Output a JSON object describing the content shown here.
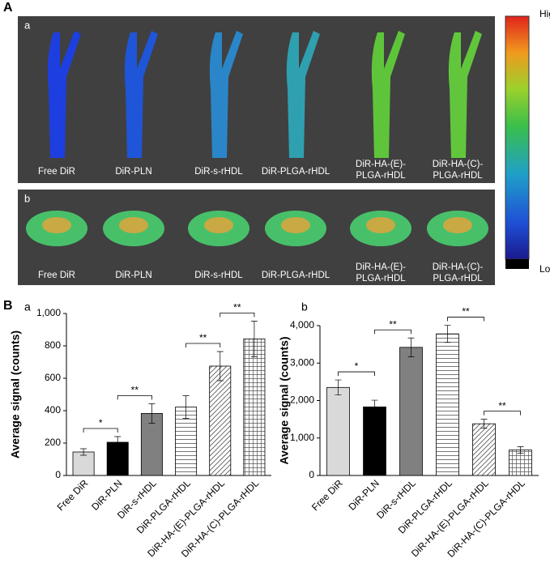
{
  "panel_a": {
    "label": "A",
    "images": [
      {
        "label": "a",
        "captions": [
          [
            "Free DiR"
          ],
          [
            "DiR-PLN"
          ],
          [
            "DiR-s-rHDL"
          ],
          [
            "DiR-PLGA-rHDL"
          ],
          [
            "DiR-HA-(E)-",
            "PLGA-rHDL"
          ],
          [
            "DiR-HA-(C)-",
            "PLGA-rHDL"
          ]
        ]
      },
      {
        "label": "b",
        "captions": [
          [
            "Free DiR"
          ],
          [
            "DiR-PLN"
          ],
          [
            "DiR-s-rHDL"
          ],
          [
            "DiR-PLGA-rHDL"
          ],
          [
            "DiR-HA-(E)-",
            "PLGA-rHDL"
          ],
          [
            "DiR-HA-(C)-",
            "PLGA-rHDL"
          ]
        ]
      }
    ],
    "colorbar": {
      "high": "High",
      "low": "Low"
    }
  },
  "panel_b": {
    "label": "B"
  },
  "chart_data": [
    {
      "type": "bar",
      "title": "a",
      "ylabel": "Average signal (counts)",
      "categories": [
        "Free DiR",
        "DiR-PLN",
        "DiR-s-rHDL",
        "DiR-PLGA-rHDL",
        "DiR-HA-(E)-PLGA-rHDL",
        "DiR-HA-(C)-PLGA-rHDL"
      ],
      "values": [
        145,
        205,
        383,
        422,
        675,
        843
      ],
      "errors": [
        20,
        35,
        60,
        70,
        90,
        110
      ],
      "colors": [
        "#d9d9d9",
        "#000000",
        "#808080",
        "#ffffff",
        "#ffffff",
        "#ffffff"
      ],
      "hatches": [
        "none",
        "none",
        "none",
        "horizontal",
        "diagonal",
        "grid"
      ],
      "ylim": [
        0,
        1000
      ],
      "yticks": [
        0,
        200,
        400,
        600,
        800,
        {
          "value": 1000,
          "label": "1,000"
        }
      ],
      "annotations": [
        {
          "label": "*",
          "from": "Free DiR",
          "to": "DiR-PLN"
        },
        {
          "label": "**",
          "from": "DiR-PLN",
          "to": "DiR-s-rHDL"
        },
        {
          "label": "**",
          "from": "DiR-PLGA-rHDL",
          "to": "DiR-HA-(E)-PLGA-rHDL"
        },
        {
          "label": "**",
          "from": "DiR-HA-(E)-PLGA-rHDL",
          "to": "DiR-HA-(C)-PLGA-rHDL"
        }
      ]
    },
    {
      "type": "bar",
      "title": "b",
      "ylabel": "Average signal (counts)",
      "categories": [
        "Free DiR",
        "DiR-PLN",
        "DiR-s-rHDL",
        "DiR-PLGA-rHDL",
        "DiR-HA-(E)-PLGA-rHDL",
        "DiR-HA-(C)-PLGA-rHDL"
      ],
      "values": [
        2350,
        1830,
        3420,
        3780,
        1380,
        680
      ],
      "errors": [
        200,
        180,
        250,
        230,
        120,
        90
      ],
      "colors": [
        "#d9d9d9",
        "#000000",
        "#808080",
        "#ffffff",
        "#ffffff",
        "#ffffff"
      ],
      "hatches": [
        "none",
        "none",
        "none",
        "horizontal",
        "diagonal",
        "grid"
      ],
      "ylim": [
        0,
        4000
      ],
      "yticks": [
        0,
        {
          "value": 1000,
          "label": "1,000"
        },
        {
          "value": 2000,
          "label": "2,000"
        },
        {
          "value": 3000,
          "label": "3,000"
        },
        {
          "value": 4000,
          "label": "4,000"
        }
      ],
      "annotations": [
        {
          "label": "*",
          "from": "Free DiR",
          "to": "DiR-PLN"
        },
        {
          "label": "**",
          "from": "DiR-PLN",
          "to": "DiR-s-rHDL"
        },
        {
          "label": "**",
          "from": "DiR-PLGA-rHDL",
          "to": "DiR-HA-(E)-PLGA-rHDL"
        },
        {
          "label": "**",
          "from": "DiR-HA-(E)-PLGA-rHDL",
          "to": "DiR-HA-(C)-PLGA-rHDL"
        }
      ]
    }
  ]
}
